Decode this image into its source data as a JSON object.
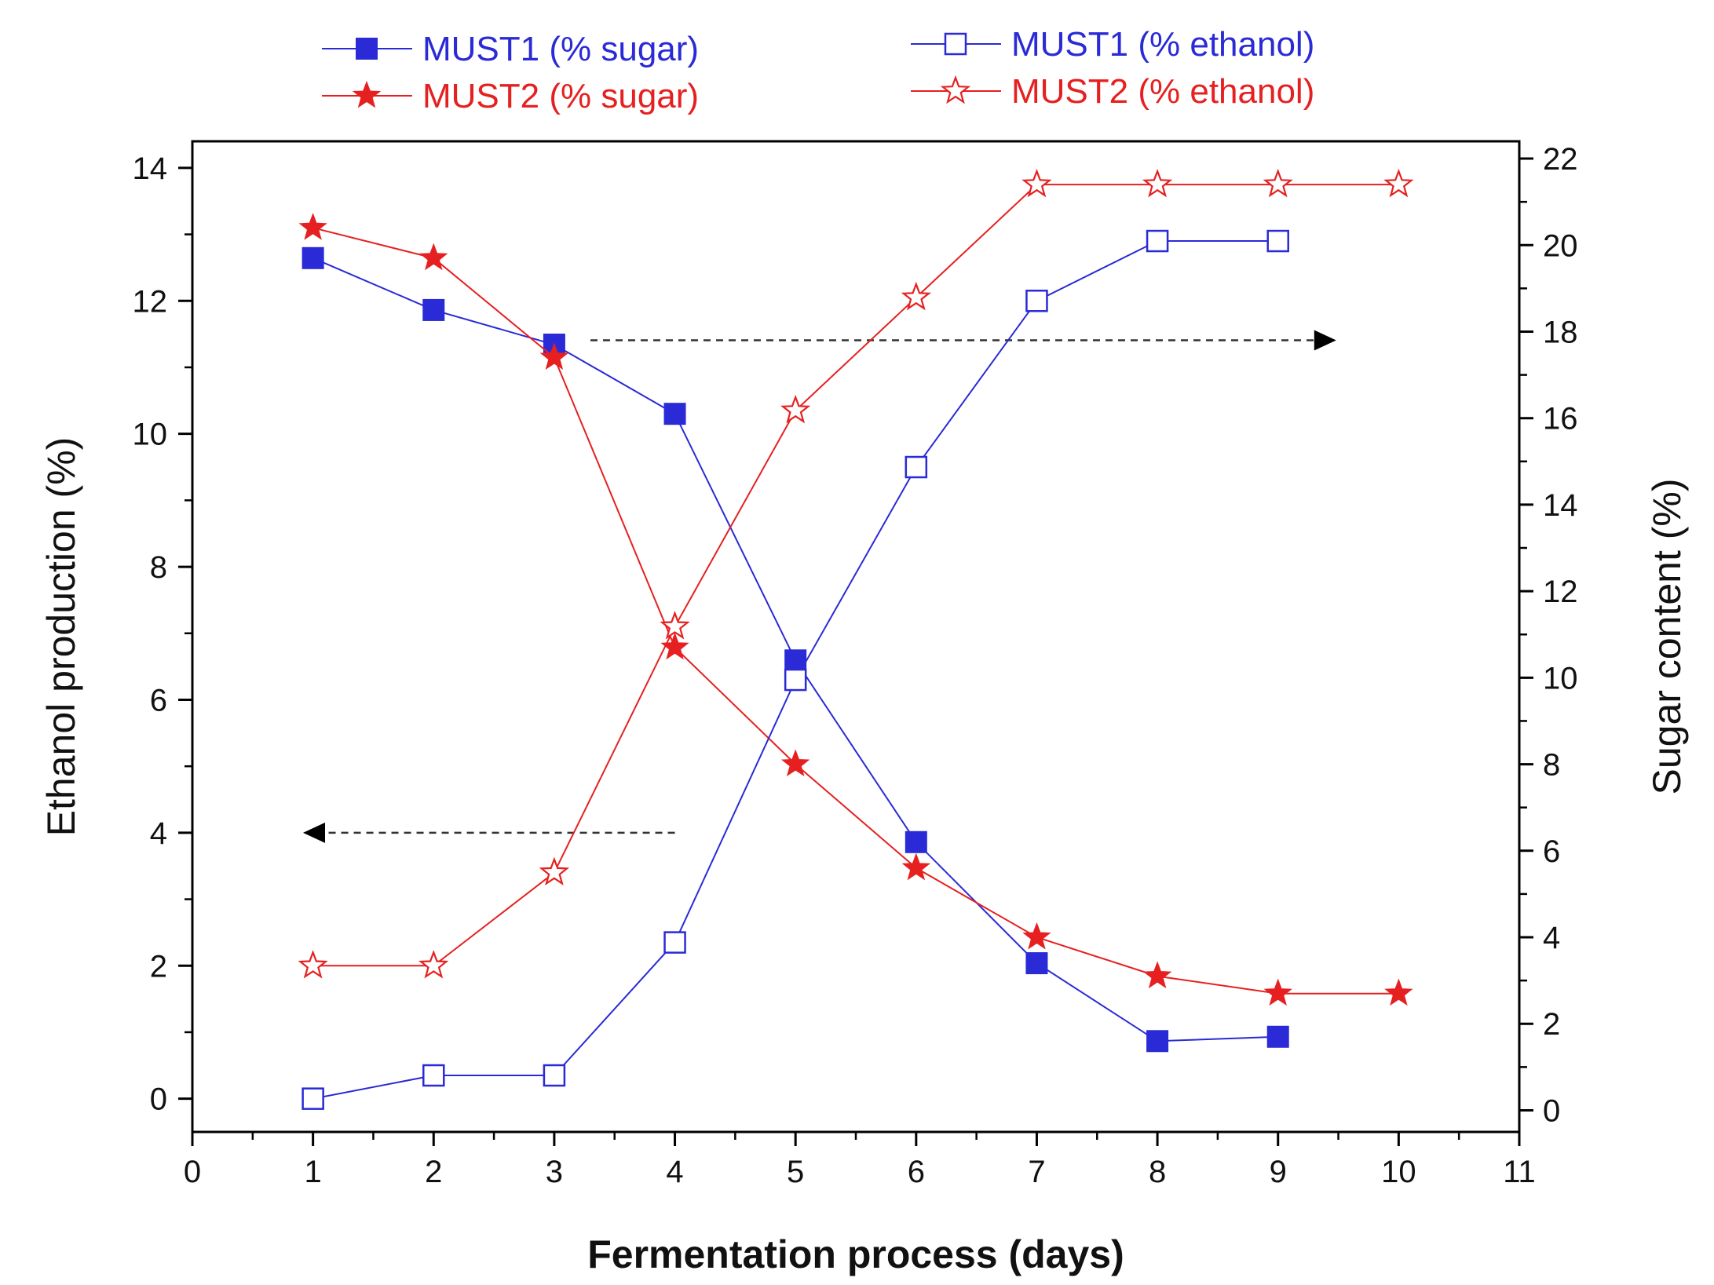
{
  "chart_data": {
    "type": "line",
    "title": "",
    "xlabel": "Fermentation process (days)",
    "ylabel_left": "Ethanol production  (%)",
    "ylabel_right": "Sugar content   (%)",
    "xlim": [
      0,
      11
    ],
    "ylim_left": [
      -0.5,
      14.4
    ],
    "ylim_right": [
      -0.5,
      22.4
    ],
    "x_ticks": [
      "0",
      "1",
      "2",
      "3",
      "4",
      "5",
      "6",
      "7",
      "8",
      "9",
      "10",
      "11"
    ],
    "y_left_ticks": [
      "0",
      "2",
      "4",
      "6",
      "8",
      "10",
      "12",
      "14"
    ],
    "y_right_ticks": [
      "0",
      "2",
      "4",
      "6",
      "8",
      "10",
      "12",
      "14",
      "16",
      "18",
      "20",
      "22"
    ],
    "legend_position": "top",
    "series": [
      {
        "name": "MUST1 (% sugar)",
        "axis": "right",
        "color": "#2a2ad6",
        "marker": "square-filled",
        "x": [
          1,
          2,
          3,
          4,
          5,
          6,
          7,
          8,
          9
        ],
        "y": [
          19.7,
          18.5,
          17.7,
          16.1,
          10.4,
          6.2,
          3.4,
          1.6,
          1.7
        ]
      },
      {
        "name": "MUST2 (% sugar)",
        "axis": "right",
        "color": "#e62020",
        "marker": "star-filled",
        "x": [
          1,
          2,
          3,
          4,
          5,
          6,
          7,
          8,
          9,
          10
        ],
        "y": [
          20.4,
          19.7,
          17.4,
          10.7,
          8.0,
          5.6,
          4.0,
          3.1,
          2.7,
          2.7
        ]
      },
      {
        "name": "MUST1 (% ethanol)",
        "axis": "left",
        "color": "#2a2ad6",
        "marker": "square-open",
        "x": [
          1,
          2,
          3,
          4,
          5,
          6,
          7,
          8,
          9
        ],
        "y": [
          0.0,
          0.35,
          0.35,
          2.35,
          6.3,
          9.5,
          12.0,
          12.9,
          12.9
        ]
      },
      {
        "name": "MUST2 (% ethanol)",
        "axis": "left",
        "color": "#e62020",
        "marker": "star-open",
        "x": [
          1,
          2,
          3,
          4,
          5,
          6,
          7,
          8,
          9,
          10
        ],
        "y": [
          2.0,
          2.0,
          3.4,
          7.1,
          10.35,
          12.05,
          13.75,
          13.75,
          13.75,
          13.75
        ]
      }
    ],
    "annotations": [
      {
        "type": "arrow",
        "direction": "right",
        "axis": "right",
        "x_from": 3.3,
        "x_to": 9.3,
        "y": 17.8,
        "meaning": "sugar curves read on right axis"
      },
      {
        "type": "arrow",
        "direction": "left",
        "axis": "left",
        "x_from": 4.0,
        "x_to": 1.1,
        "y": 4.0,
        "meaning": "ethanol curves read on left axis"
      }
    ]
  }
}
